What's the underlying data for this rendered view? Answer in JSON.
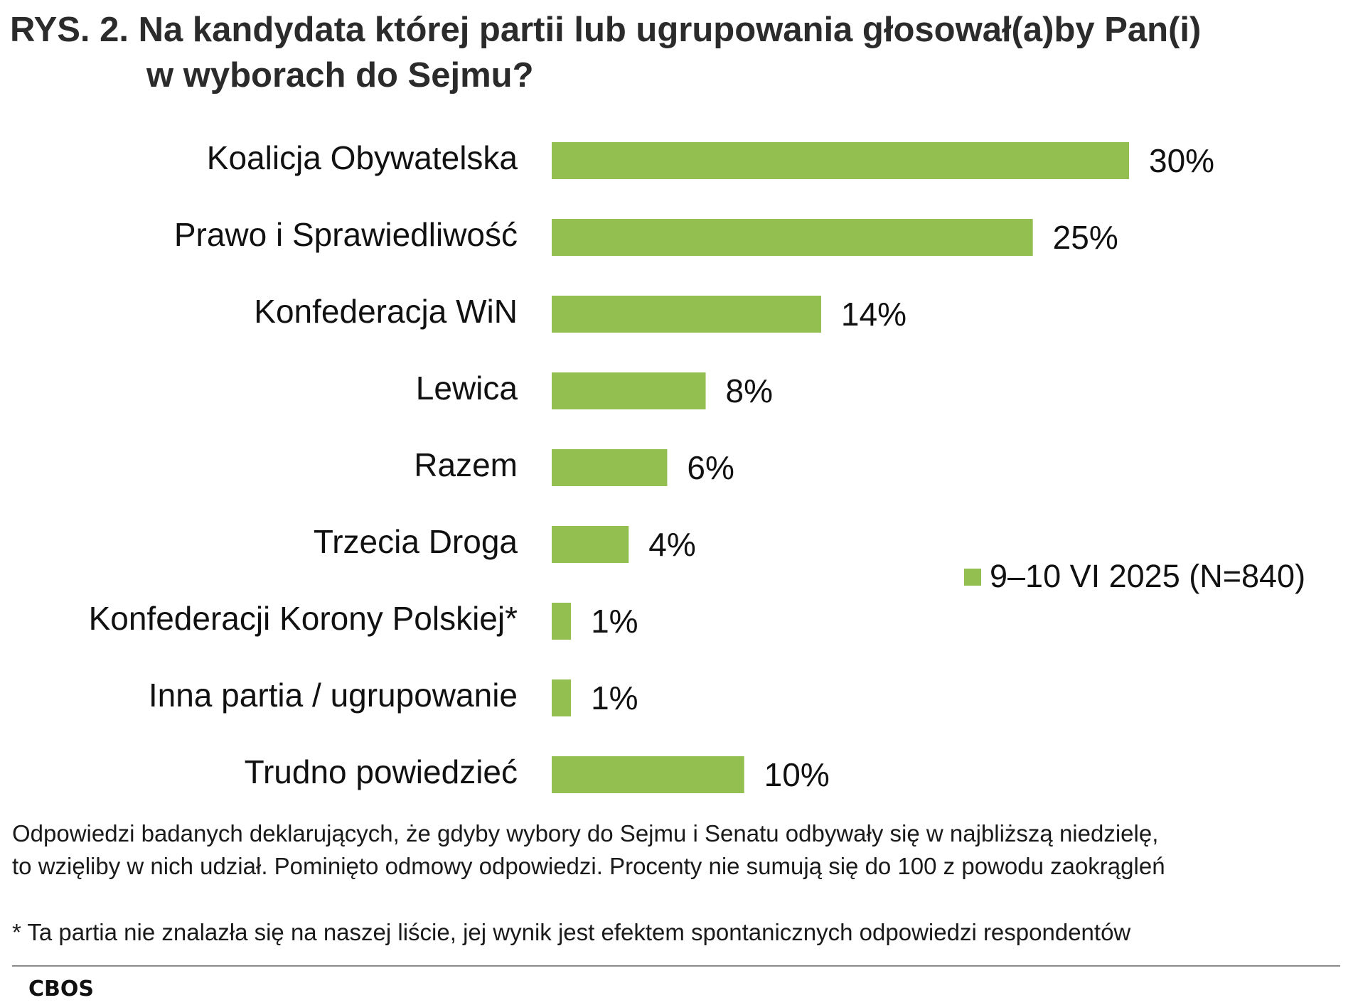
{
  "title": {
    "line1": "RYS. 2. Na kandydata której partii lub ugrupowania głosował(a)by Pan(i)",
    "line2": "w wyborach do Sejmu?"
  },
  "chart_data": {
    "type": "bar",
    "orientation": "horizontal",
    "categories": [
      "Koalicja Obywatelska",
      "Prawo i Sprawiedliwość",
      "Konfederacja WiN",
      "Lewica",
      "Razem",
      "Trzecia Droga",
      "Konfederacji Korony Polskiej*",
      "Inna partia / ugrupowanie",
      "Trudno powiedzieć"
    ],
    "series": [
      {
        "name": "9–10 VI 2025 (N=840)",
        "values": [
          30,
          25,
          14,
          8,
          6,
          4,
          1,
          1,
          10
        ],
        "value_labels": [
          "30%",
          "25%",
          "14%",
          "8%",
          "6%",
          "4%",
          "1%",
          "1%",
          "10%"
        ],
        "color": "#92bf4f"
      }
    ],
    "xlim": [
      0,
      30
    ],
    "grid": false,
    "legend_position": "right"
  },
  "notes": {
    "line1": "Odpowiedzi badanych deklarujących, że gdyby wybory do Sejmu i Senatu odbywały się w najbliższą niedzielę,",
    "line2": "to wzięliby w nich udział. Pominięto odmowy odpowiedzi. Procenty nie sumują się do 100 z powodu zaokrągleń",
    "footnote": "* Ta partia nie znalazła się na naszej liście, jej wynik jest efektem spontanicznych odpowiedzi respondentów"
  },
  "source": "CBOS"
}
